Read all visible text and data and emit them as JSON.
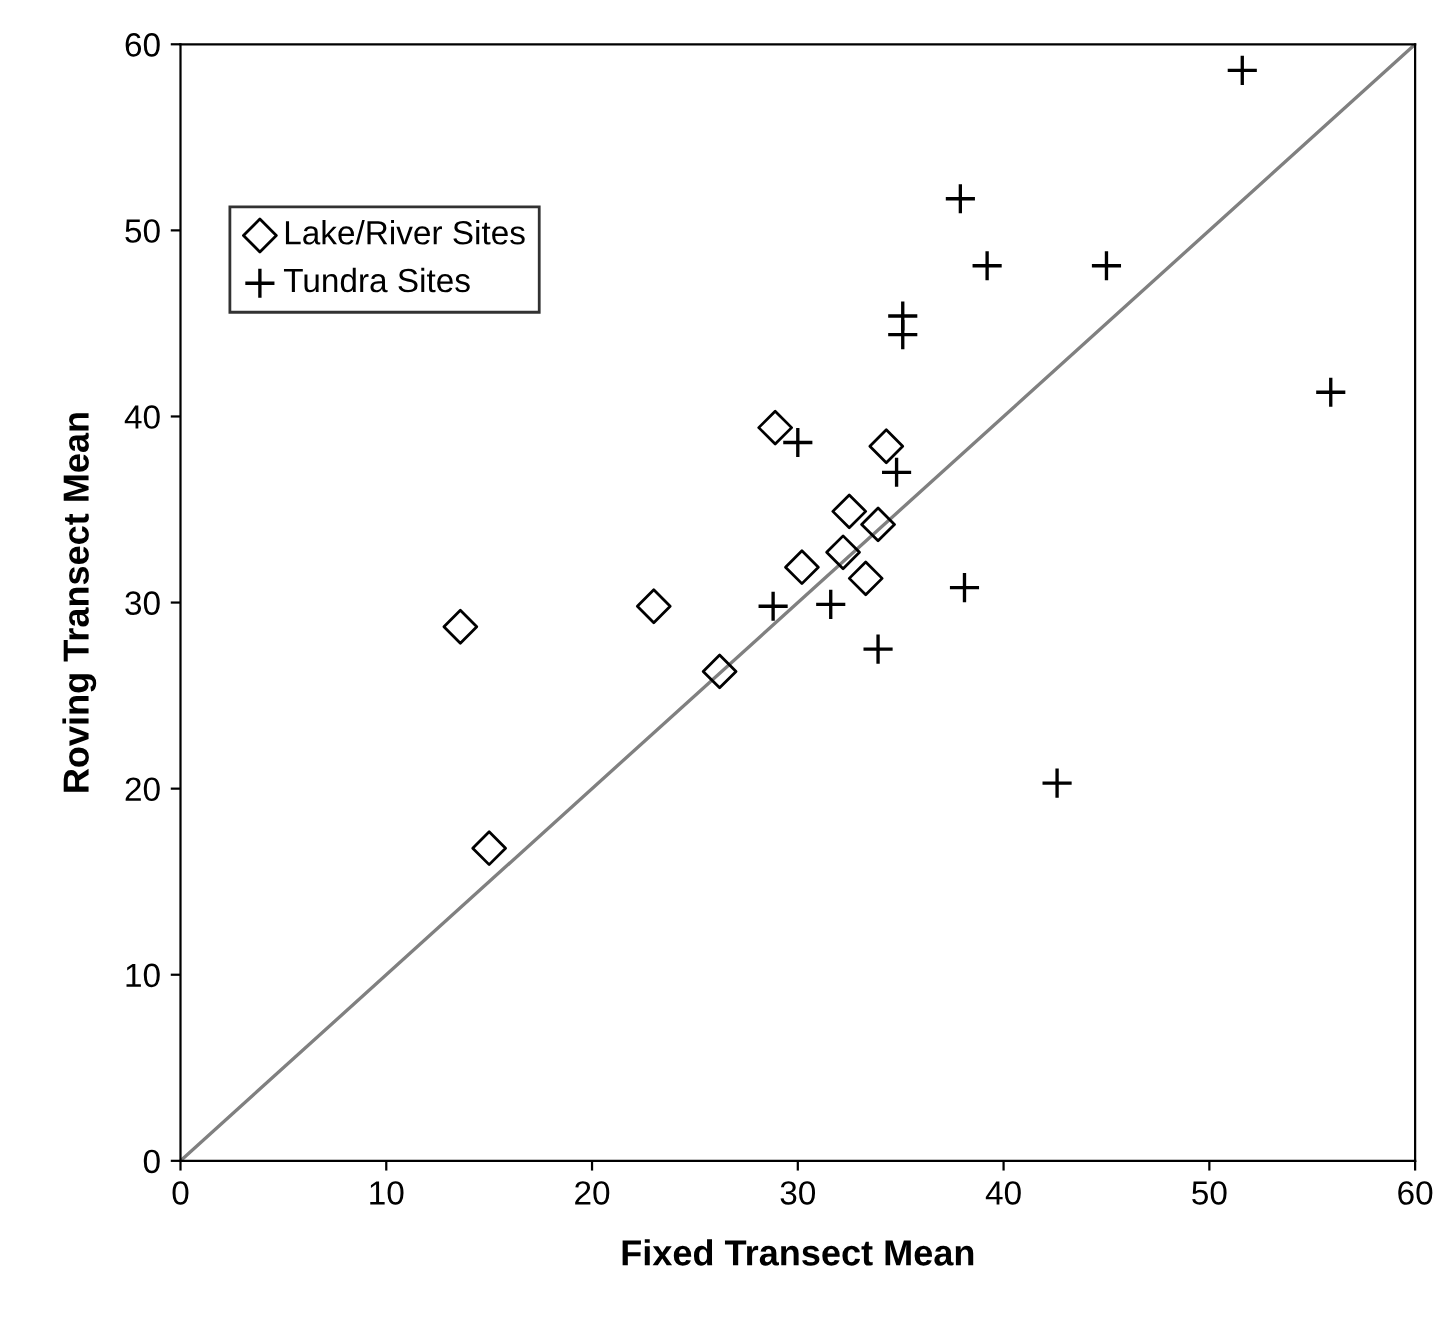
{
  "chart_data": {
    "type": "scatter",
    "xlabel": "Fixed Transect Mean",
    "ylabel": "Roving Transect Mean",
    "xlim": [
      0,
      60
    ],
    "ylim": [
      0,
      60
    ],
    "xticks": [
      0,
      10,
      20,
      30,
      40,
      50,
      60
    ],
    "yticks": [
      0,
      10,
      20,
      30,
      40,
      50,
      60
    ],
    "grid": false,
    "legend": "top left",
    "series": [
      {
        "name": "Lake/River Sites",
        "color": "#000000",
        "marker": "diamond",
        "x": [
          13.6,
          23.0,
          26.2,
          15.0,
          28.9,
          34.3,
          32.5,
          33.9,
          30.2,
          32.2,
          33.3
        ],
        "values": [
          28.7,
          29.8,
          26.3,
          16.8,
          39.4,
          38.4,
          34.9,
          34.2,
          31.9,
          32.7,
          31.3
        ]
      },
      {
        "name": "Tundra Sites",
        "color": "#000000",
        "marker": "cross",
        "x": [
          30.0,
          34.8,
          28.8,
          31.6,
          33.9,
          37.9,
          39.2,
          45.0,
          35.1,
          35.1,
          55.9,
          38.1,
          42.6,
          51.6
        ],
        "values": [
          38.6,
          37.0,
          29.8,
          29.9,
          27.5,
          51.7,
          48.1,
          48.1,
          45.4,
          44.4,
          41.3,
          30.8,
          20.3,
          58.6
        ]
      },
      {
        "type": "line",
        "color": "#808080",
        "marker": "none",
        "line_style": "solid",
        "x": [
          0,
          60
        ],
        "values": [
          0,
          60
        ]
      }
    ]
  }
}
